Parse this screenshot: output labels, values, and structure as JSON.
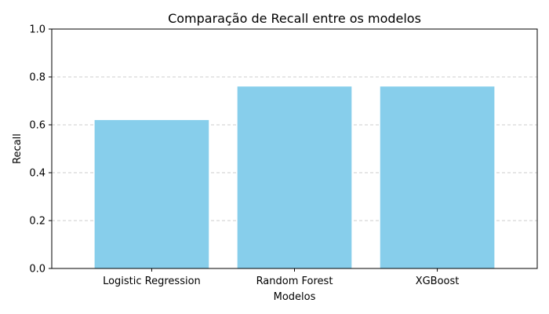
{
  "chart_data": {
    "type": "bar",
    "title": "Comparação de Recall entre os modelos",
    "xlabel": "Modelos",
    "ylabel": "Recall",
    "categories": [
      "Logistic Regression",
      "Random Forest",
      "XGBoost"
    ],
    "values": [
      0.62,
      0.76,
      0.76
    ],
    "ylim": [
      0,
      1.0
    ],
    "yticks": [
      "0.0",
      "0.2",
      "0.4",
      "0.6",
      "0.8",
      "1.0"
    ],
    "grid": {
      "axis": "y",
      "style": "dashed",
      "color": "#cccccc"
    },
    "bar_color": "#87ceeb",
    "legend": false
  }
}
